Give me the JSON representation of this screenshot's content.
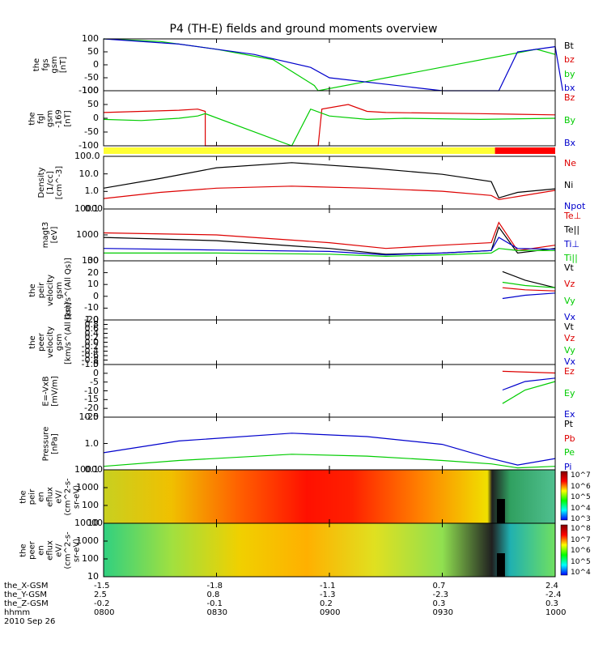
{
  "title": "P4 (TH-E) fields and ground moments overview",
  "panels": [
    {
      "id": "fgs",
      "ylabel_lines": [
        "the",
        "fgs",
        "gsm",
        "[nT]"
      ],
      "legend": [
        {
          "t": "Bt",
          "c": "#000000"
        },
        {
          "t": "bz",
          "c": "#dd0000"
        },
        {
          "t": "by",
          "c": "#00cc00"
        },
        {
          "t": "bx",
          "c": "#0000cc"
        }
      ],
      "ticks": [
        "100",
        "50",
        "0",
        "-50",
        "-100"
      ]
    },
    {
      "id": "fgl",
      "ylabel_lines": [
        "the",
        "fgl",
        "gsm",
        "-169",
        "[nT]"
      ],
      "legend": [
        {
          "t": "Bz",
          "c": "#dd0000"
        },
        {
          "t": "By",
          "c": "#00cc00"
        },
        {
          "t": "Bx",
          "c": "#0000cc"
        }
      ],
      "ticks": [
        "100",
        "50",
        "0",
        "-50",
        "-100"
      ]
    },
    {
      "id": "dens",
      "ylabel_lines": [
        "Density",
        "[1/cc]",
        "[cm^-3]"
      ],
      "legend": [
        {
          "t": "Ne",
          "c": "#dd0000"
        },
        {
          "t": "Ni",
          "c": "#000000"
        },
        {
          "t": "Npot",
          "c": "#0000cc"
        }
      ],
      "ticks": [
        "100.0",
        "10.0",
        "1.0",
        "0.1"
      ]
    },
    {
      "id": "temp",
      "ylabel_lines": [
        "magt3",
        "[eV]"
      ],
      "legend": [
        {
          "t": "Te⊥",
          "c": "#dd0000"
        },
        {
          "t": "Te||",
          "c": "#000000"
        },
        {
          "t": "Ti⊥",
          "c": "#0000cc"
        },
        {
          "t": "Ti||",
          "c": "#00cc00"
        }
      ],
      "ticks": [
        "10000",
        "1000",
        "100"
      ]
    },
    {
      "id": "vi",
      "ylabel_lines": [
        "the",
        "peir",
        "velocity",
        "gsm",
        "[km/s^(All Qs)]"
      ],
      "legend": [
        {
          "t": "Vt",
          "c": "#000000"
        },
        {
          "t": "Vz",
          "c": "#dd0000"
        },
        {
          "t": "Vy",
          "c": "#00cc00"
        },
        {
          "t": "Vx",
          "c": "#0000cc"
        }
      ],
      "ticks": [
        "30",
        "20",
        "10",
        "0",
        "-10",
        "-20"
      ]
    },
    {
      "id": "ve",
      "ylabel_lines": [
        "the",
        "peer",
        "velocity",
        "gsm",
        "[km/s^(All Qs)]"
      ],
      "legend": [
        {
          "t": "Vt",
          "c": "#000000"
        },
        {
          "t": "Vz",
          "c": "#dd0000"
        },
        {
          "t": "Vy",
          "c": "#00cc00"
        },
        {
          "t": "Vx",
          "c": "#0000cc"
        }
      ],
      "ticks": [
        "1.0",
        "0.8",
        "0.6",
        "0.4",
        "0.2",
        "0.0",
        "-0.2",
        "-0.4",
        "-0.6",
        "-0.8",
        "-1.0"
      ]
    },
    {
      "id": "efield",
      "ylabel_lines": [
        "E=-VxB",
        "[mV/m]"
      ],
      "legend": [
        {
          "t": "Ez",
          "c": "#dd0000"
        },
        {
          "t": "Ey",
          "c": "#00cc00"
        },
        {
          "t": "Ex",
          "c": "#0000cc"
        }
      ],
      "ticks": [
        "5",
        "0",
        "-5",
        "-10",
        "-15",
        "-20",
        "-25"
      ]
    },
    {
      "id": "press",
      "ylabel_lines": [
        "Pressure",
        "[nPa]"
      ],
      "legend": [
        {
          "t": "Pt",
          "c": "#000000"
        },
        {
          "t": "Pb",
          "c": "#dd0000"
        },
        {
          "t": "Pe",
          "c": "#00cc00"
        },
        {
          "t": "Pi",
          "c": "#0000cc"
        }
      ],
      "ticks": [
        "10.0",
        "1.0",
        "0.1"
      ]
    },
    {
      "id": "ispec",
      "ylabel_lines": [
        "the",
        "peir",
        "en",
        "eflux",
        "eV/",
        "(cm^2-s-",
        "sr-eV)"
      ],
      "legend": [],
      "ticks": [
        "10000",
        "1000",
        "100",
        "10"
      ],
      "colorbar": [
        "10^7",
        "10^6",
        "10^5",
        "10^4",
        "10^3"
      ]
    },
    {
      "id": "espec",
      "ylabel_lines": [
        "the",
        "peer",
        "en",
        "eflux",
        "eV/",
        "(cm^2-s-",
        "sr-eV)"
      ],
      "legend": [],
      "ticks": [
        "10000",
        "1000",
        "100",
        "10"
      ],
      "colorbar": [
        "10^8",
        "10^7",
        "10^6",
        "10^5",
        "10^4"
      ]
    }
  ],
  "footer": {
    "labels": [
      "the_X-GSM",
      "the_Y-GSM",
      "the_Z-GSM",
      "hhmm",
      "2010 Sep 26"
    ],
    "columns": [
      [
        "-1.5",
        "2.5",
        "-0.2",
        "0800"
      ],
      [
        "-1.8",
        "0.8",
        "-0.1",
        "0830"
      ],
      [
        "-1.1",
        "-1.3",
        "0.2",
        "0900"
      ],
      [
        "0.7",
        "-2.3",
        "0.3",
        "0930"
      ],
      [
        "2.4",
        "-2.4",
        "0.3",
        "1000"
      ]
    ]
  },
  "chart_data": {
    "type": "line",
    "x_axis": "time (hhmm) 0800-1000, 2010 Sep 26",
    "xlim": [
      "0800",
      "1000"
    ],
    "fgs_bt": [
      [
        0,
        100
      ],
      [
        20,
        80
      ],
      [
        40,
        40
      ],
      [
        55,
        -10
      ],
      [
        60,
        -50
      ],
      [
        90,
        -100
      ],
      [
        105,
        -100
      ],
      [
        110,
        50
      ],
      [
        120,
        70
      ],
      [
        122,
        -100
      ]
    ],
    "fgs_by": [
      [
        0,
        100
      ],
      [
        15,
        90
      ],
      [
        30,
        60
      ],
      [
        45,
        20
      ],
      [
        56,
        -80
      ],
      [
        57,
        -100
      ],
      [
        115,
        60
      ],
      [
        120,
        40
      ]
    ],
    "fgl_bz": [
      [
        0,
        25
      ],
      [
        10,
        30
      ],
      [
        20,
        35
      ],
      [
        25,
        40
      ],
      [
        27,
        30
      ],
      [
        27,
        -120
      ],
      [
        57,
        -120
      ],
      [
        58,
        40
      ],
      [
        65,
        60
      ],
      [
        70,
        30
      ],
      [
        75,
        25
      ],
      [
        100,
        20
      ],
      [
        120,
        15
      ]
    ],
    "fgl_by": [
      [
        0,
        -5
      ],
      [
        10,
        -10
      ],
      [
        20,
        0
      ],
      [
        25,
        10
      ],
      [
        27,
        20
      ],
      [
        50,
        -120
      ],
      [
        55,
        40
      ],
      [
        60,
        10
      ],
      [
        70,
        -5
      ],
      [
        80,
        0
      ],
      [
        100,
        -5
      ],
      [
        120,
        0
      ]
    ],
    "density_ni": [
      [
        0,
        1.0
      ],
      [
        15,
        5
      ],
      [
        30,
        30
      ],
      [
        50,
        70
      ],
      [
        70,
        30
      ],
      [
        90,
        10
      ],
      [
        103,
        3
      ],
      [
        105,
        0.2
      ],
      [
        110,
        0.5
      ],
      [
        120,
        0.9
      ]
    ],
    "density_ne": [
      [
        0,
        0.18
      ],
      [
        15,
        0.5
      ],
      [
        30,
        1.0
      ],
      [
        50,
        1.4
      ],
      [
        70,
        1.0
      ],
      [
        90,
        0.6
      ],
      [
        103,
        0.3
      ],
      [
        105,
        0.15
      ],
      [
        120,
        0.7
      ]
    ],
    "temp_tepar": [
      [
        0,
        800
      ],
      [
        30,
        600
      ],
      [
        60,
        300
      ],
      [
        75,
        180
      ],
      [
        90,
        200
      ],
      [
        103,
        250
      ],
      [
        105,
        2000
      ],
      [
        110,
        200
      ],
      [
        120,
        300
      ]
    ],
    "temp_teperp": [
      [
        0,
        1200
      ],
      [
        30,
        1000
      ],
      [
        60,
        500
      ],
      [
        75,
        300
      ],
      [
        90,
        400
      ],
      [
        103,
        500
      ],
      [
        105,
        3000
      ],
      [
        110,
        250
      ],
      [
        120,
        400
      ]
    ],
    "temp_tiperp": [
      [
        0,
        300
      ],
      [
        30,
        260
      ],
      [
        60,
        230
      ],
      [
        75,
        170
      ],
      [
        90,
        200
      ],
      [
        103,
        250
      ],
      [
        105,
        800
      ],
      [
        110,
        300
      ],
      [
        120,
        280
      ]
    ],
    "temp_tipar": [
      [
        0,
        200
      ],
      [
        30,
        200
      ],
      [
        60,
        180
      ],
      [
        75,
        150
      ],
      [
        90,
        170
      ],
      [
        103,
        200
      ],
      [
        105,
        300
      ],
      [
        110,
        250
      ],
      [
        120,
        250
      ]
    ],
    "vi_vt": [
      [
        106,
        20
      ],
      [
        112,
        12
      ],
      [
        120,
        5
      ]
    ],
    "vi_vz": [
      [
        106,
        5
      ],
      [
        112,
        3
      ],
      [
        120,
        2
      ]
    ],
    "vi_vy": [
      [
        106,
        10
      ],
      [
        112,
        7
      ],
      [
        120,
        5
      ]
    ],
    "vi_vx": [
      [
        106,
        -5
      ],
      [
        112,
        -2
      ],
      [
        120,
        0
      ]
    ],
    "e_ez": [
      [
        106,
        1
      ],
      [
        120,
        0
      ]
    ],
    "e_ey": [
      [
        106,
        -18
      ],
      [
        112,
        -10
      ],
      [
        120,
        -5
      ]
    ],
    "e_ex": [
      [
        106,
        -10
      ],
      [
        112,
        -5
      ],
      [
        120,
        -3
      ]
    ],
    "press_pi": [
      [
        0,
        0.3
      ],
      [
        20,
        1.2
      ],
      [
        50,
        3.0
      ],
      [
        70,
        2.0
      ],
      [
        90,
        0.8
      ],
      [
        103,
        0.15
      ],
      [
        110,
        0.07
      ],
      [
        120,
        0.15
      ]
    ],
    "press_pe": [
      [
        0,
        0.06
      ],
      [
        20,
        0.12
      ],
      [
        50,
        0.25
      ],
      [
        70,
        0.2
      ],
      [
        90,
        0.12
      ],
      [
        103,
        0.08
      ],
      [
        110,
        0.05
      ],
      [
        120,
        0.06
      ]
    ]
  }
}
